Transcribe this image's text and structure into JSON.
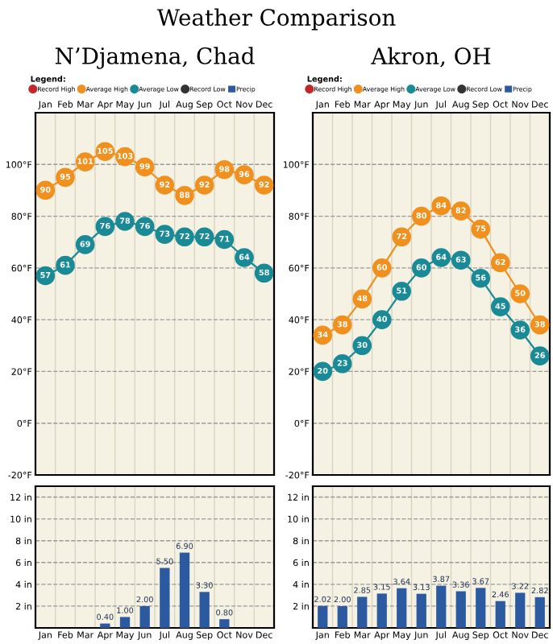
{
  "chart_data": [
    {
      "type": "line",
      "title": "Weather Comparison",
      "subtitle": "N’Djamena, Chad",
      "legend_title": "Legend:",
      "legend": "top",
      "marker": "circle",
      "line_style": "solid",
      "data_labels": true,
      "grid": true,
      "categories": [
        "Jan",
        "Feb",
        "Mar",
        "Apr",
        "May",
        "Jun",
        "Jul",
        "Aug",
        "Sep",
        "Oct",
        "Nov",
        "Dec"
      ],
      "ylim": [
        -20,
        120
      ],
      "yticks": [
        {
          "value": -20,
          "label": "-20°F"
        },
        {
          "value": 0,
          "label": "0°F"
        },
        {
          "value": 20,
          "label": "20°F"
        },
        {
          "value": 40,
          "label": "40°F"
        },
        {
          "value": 60,
          "label": "60°F"
        },
        {
          "value": 80,
          "label": "80°F"
        },
        {
          "value": 100,
          "label": "100°F"
        }
      ],
      "series": [
        {
          "name": "Record High",
          "color": "#c0282a",
          "values": [
            null,
            null,
            null,
            null,
            null,
            null,
            null,
            null,
            null,
            null,
            null,
            null
          ]
        },
        {
          "name": "Average High",
          "color": "#f0901e",
          "values": [
            90,
            95,
            101,
            105,
            103,
            99,
            92,
            88,
            92,
            98,
            96,
            92
          ]
        },
        {
          "name": "Average Low",
          "color": "#1a8a96",
          "values": [
            57,
            61,
            69,
            76,
            78,
            76,
            73,
            72,
            72,
            71,
            64,
            58
          ]
        },
        {
          "name": "Record Low",
          "color": "#333333",
          "values": [
            null,
            null,
            null,
            null,
            null,
            null,
            null,
            null,
            null,
            null,
            null,
            null
          ]
        }
      ]
    },
    {
      "type": "line",
      "subtitle": "Akron, OH",
      "legend_title": "Legend:",
      "legend": "top",
      "marker": "circle",
      "line_style": "solid",
      "data_labels": true,
      "grid": true,
      "categories": [
        "Jan",
        "Feb",
        "Mar",
        "Apr",
        "May",
        "Jun",
        "Jul",
        "Aug",
        "Sep",
        "Oct",
        "Nov",
        "Dec"
      ],
      "ylim": [
        -20,
        120
      ],
      "yticks": [
        {
          "value": -20,
          "label": "-20°F"
        },
        {
          "value": 0,
          "label": "0°F"
        },
        {
          "value": 20,
          "label": "20°F"
        },
        {
          "value": 40,
          "label": "40°F"
        },
        {
          "value": 60,
          "label": "60°F"
        },
        {
          "value": 80,
          "label": "80°F"
        },
        {
          "value": 100,
          "label": "100°F"
        }
      ],
      "series": [
        {
          "name": "Record High",
          "color": "#c0282a",
          "values": [
            null,
            null,
            null,
            null,
            null,
            null,
            null,
            null,
            null,
            null,
            null,
            null
          ]
        },
        {
          "name": "Average High",
          "color": "#f0901e",
          "values": [
            34,
            38,
            48,
            60,
            72,
            80,
            84,
            82,
            75,
            62,
            50,
            38
          ]
        },
        {
          "name": "Average Low",
          "color": "#1a8a96",
          "values": [
            20,
            23,
            30,
            40,
            51,
            60,
            64,
            63,
            56,
            45,
            36,
            26
          ]
        },
        {
          "name": "Record Low",
          "color": "#333333",
          "values": [
            null,
            null,
            null,
            null,
            null,
            null,
            null,
            null,
            null,
            null,
            null,
            null
          ]
        }
      ]
    },
    {
      "type": "bar",
      "legend": "top",
      "grid": true,
      "categories": [
        "Jan",
        "Feb",
        "Mar",
        "Apr",
        "May",
        "Jun",
        "Jul",
        "Aug",
        "Sep",
        "Oct",
        "Nov",
        "Dec"
      ],
      "ylim": [
        0,
        13
      ],
      "yticks": [
        {
          "value": 2,
          "label": "2 in"
        },
        {
          "value": 4,
          "label": "4 in"
        },
        {
          "value": 6,
          "label": "6 in"
        },
        {
          "value": 8,
          "label": "8 in"
        },
        {
          "value": 10,
          "label": "10 in"
        },
        {
          "value": 12,
          "label": "12 in"
        }
      ],
      "series": [
        {
          "name": "Precip",
          "color": "#2c5aa0",
          "values": [
            0,
            0,
            0,
            0.4,
            1.0,
            2.0,
            5.5,
            6.9,
            3.3,
            0.8,
            0,
            0
          ],
          "value_labels": [
            null,
            null,
            null,
            "0.40",
            "1.00",
            "2.00",
            "5.50",
            "6.90",
            "3.30",
            "0.80",
            null,
            null
          ]
        }
      ]
    },
    {
      "type": "bar",
      "legend": "top",
      "grid": true,
      "categories": [
        "Jan",
        "Feb",
        "Mar",
        "Apr",
        "May",
        "Jun",
        "Jul",
        "Aug",
        "Sep",
        "Oct",
        "Nov",
        "Dec"
      ],
      "ylim": [
        0,
        13
      ],
      "yticks": [
        {
          "value": 2,
          "label": "2 in"
        },
        {
          "value": 4,
          "label": "4 in"
        },
        {
          "value": 6,
          "label": "6 in"
        },
        {
          "value": 8,
          "label": "8 in"
        },
        {
          "value": 10,
          "label": "10 in"
        },
        {
          "value": 12,
          "label": "12 in"
        }
      ],
      "series": [
        {
          "name": "Precip",
          "color": "#2c5aa0",
          "values": [
            2.02,
            2.0,
            2.85,
            3.15,
            3.64,
            3.13,
            3.87,
            3.36,
            3.67,
            2.46,
            3.22,
            2.82
          ],
          "value_labels": [
            "2.02",
            "2.00",
            "2.85",
            "3.15",
            "3.64",
            "3.13",
            "3.87",
            "3.36",
            "3.67",
            "2.46",
            "3.22",
            "2.82"
          ]
        }
      ]
    }
  ]
}
